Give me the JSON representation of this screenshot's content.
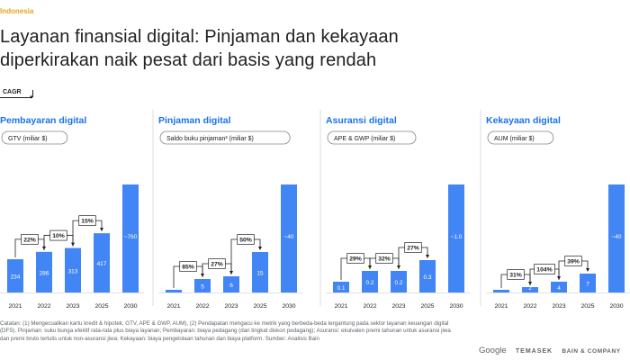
{
  "header": {
    "tag": "Indonesia",
    "title_line1": "Layanan finansial digital: Pinjaman dan kekayaan",
    "title_line2": "diperkirakan naik pesat dari basis yang rendah",
    "cagr_label": "CAGR"
  },
  "colors": {
    "accent": "#e3a521",
    "bar": "#4285f4",
    "heading": "#1a73e8",
    "text": "#202124"
  },
  "chart_data": [
    {
      "type": "bar",
      "title": "Pembayaran digital",
      "ylabel": "GTV (miliar $)",
      "categories": [
        "2021",
        "2022",
        "2023",
        "2025",
        "2030"
      ],
      "values": [
        234,
        286,
        313,
        417,
        760
      ],
      "data_labels": [
        "234",
        "286",
        "313",
        "417",
        "~760"
      ],
      "cagr": [
        "22%",
        "10%",
        "15%"
      ]
    },
    {
      "type": "bar",
      "title": "Pinjaman digital",
      "ylabel": "Saldo buku pinjaman² (miliar $)",
      "categories": [
        "2021",
        "2022",
        "2023",
        "2025",
        "2030"
      ],
      "values": [
        1,
        5,
        6,
        15,
        40
      ],
      "data_labels": [
        "1",
        "5",
        "6",
        "15",
        "~40"
      ],
      "cagr": [
        "85%",
        "27%",
        "50%"
      ]
    },
    {
      "type": "bar",
      "title": "Asuransi digital",
      "ylabel": "APE & GWP (miliar $)",
      "categories": [
        "2021",
        "2022",
        "2023",
        "2025",
        "2030"
      ],
      "values": [
        0.1,
        0.2,
        0.2,
        0.3,
        1.0
      ],
      "data_labels": [
        "0.1",
        "0.2",
        "0.2",
        "0.3",
        "~1.0"
      ],
      "cagr": [
        "29%",
        "32%",
        "27%"
      ]
    },
    {
      "type": "bar",
      "title": "Kekayaan digital",
      "ylabel": "AUM (miliar $)",
      "categories": [
        "2021",
        "2022",
        "2023",
        "2025",
        "2030"
      ],
      "values": [
        1,
        2,
        4,
        7,
        40
      ],
      "data_labels": [
        "1",
        "2",
        "4",
        "7",
        "~40"
      ],
      "cagr": [
        "31%",
        "104%",
        "39%"
      ]
    }
  ],
  "footer": {
    "notes": "Catatan: (1) Mengecualikan kartu kredit & hipotek, GTV, APE & GWP, AUM), (2) Pendapatan mengacu ke metrik yang berbeda-beda tergantung pada sektor layanan keuangan digital (DFS). Pinjaman: suku bunga efektif rata-rata plus biaya layanan; Pembayaran: biaya pedagang (dari tingkat diskon pedagang); Asuransi: ekuivalen premi tahunan untuk asuransi jiwa dan premi bruto tertulis untuk non-asuransi jiwa; Kekayaan: biaya pengelolaan tahunan dan biaya platform. Sumber: Analisis Bain",
    "logo_google": "Google",
    "logo_temasek": "TEMASEK",
    "logo_bain": "BAIN & COMPANY"
  }
}
